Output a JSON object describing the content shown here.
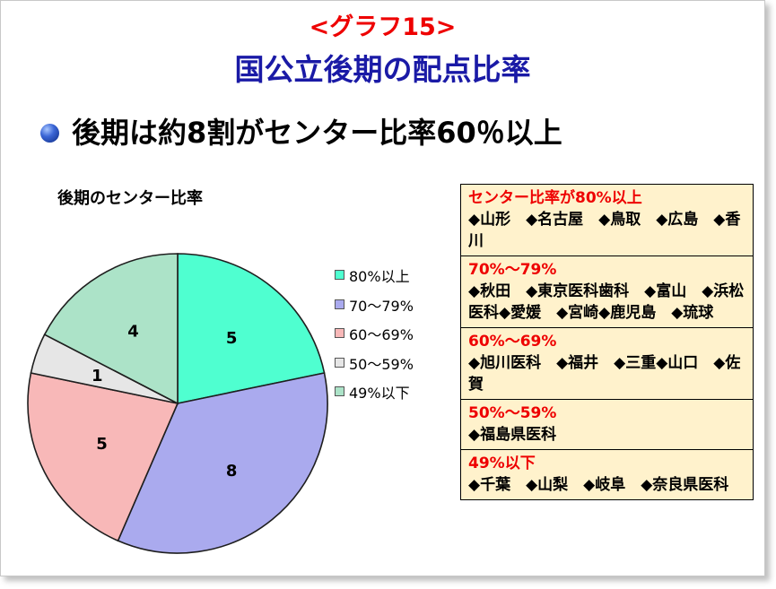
{
  "header": {
    "tag": "<グラフ15>",
    "title": "国公立後期の配点比率"
  },
  "bullet": {
    "text": "後期は約8割がセンター比率60％以上"
  },
  "chart_data": {
    "type": "pie",
    "title": "後期のセンター比率",
    "categories": [
      "80%以上",
      "70～79%",
      "60～69%",
      "50～59%",
      "49%以下"
    ],
    "values": [
      5,
      8,
      5,
      1,
      4
    ],
    "colors": [
      "#4fffd0",
      "#aaaaee",
      "#f8b8b8",
      "#e6e6e6",
      "#ace3c8"
    ],
    "legend": "right",
    "data_labels": true
  },
  "table": {
    "rows": [
      {
        "heading": "センター比率が80%以上",
        "body": "◆山形　◆名古屋　◆鳥取　◆広島　◆香川"
      },
      {
        "heading": "70%～79%",
        "body": "◆秋田　◆東京医科歯科　◆富山　◆浜松医科◆愛媛　◆宮崎◆鹿児島　◆琉球"
      },
      {
        "heading": "60%～69%",
        "body": "◆旭川医科　◆福井　◆三重◆山口　◆佐賀"
      },
      {
        "heading": "50%～59%",
        "body": "◆福島県医科"
      },
      {
        "heading": "49%以下",
        "body": "◆千葉　◆山梨　◆岐阜　◆奈良県医科"
      }
    ]
  }
}
